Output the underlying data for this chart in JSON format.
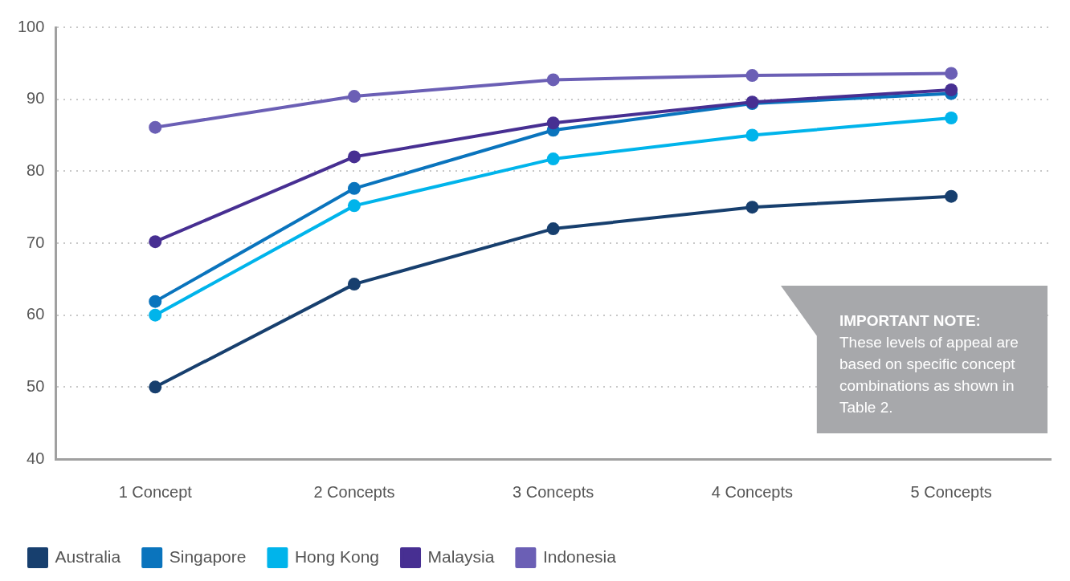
{
  "chart_data": {
    "type": "line",
    "categories": [
      "1 Concept",
      "2 Concepts",
      "3 Concepts",
      "4 Concepts",
      "5 Concepts"
    ],
    "series": [
      {
        "name": "Australia",
        "color": "#173f6e",
        "values": [
          50,
          64.3,
          72,
          75,
          76.5
        ]
      },
      {
        "name": "Singapore",
        "color": "#0a74bd",
        "values": [
          61.9,
          77.6,
          85.7,
          89.4,
          90.8
        ]
      },
      {
        "name": "Hong Kong",
        "color": "#00b4eb",
        "values": [
          60,
          75.2,
          81.7,
          85,
          87.4
        ]
      },
      {
        "name": "Malaysia",
        "color": "#472f92",
        "values": [
          70.2,
          82,
          86.7,
          89.6,
          91.3
        ]
      },
      {
        "name": "Indonesia",
        "color": "#6b5fb5",
        "values": [
          86.1,
          90.4,
          92.7,
          93.3,
          93.6
        ]
      }
    ],
    "ylim": [
      40,
      100
    ],
    "yticks": [
      40,
      50,
      60,
      70,
      80,
      90,
      100
    ],
    "grid": "y",
    "legend": "bottom left",
    "marker": "circle",
    "line_style": "solid",
    "annotations": [
      "IMPORTANT NOTE:",
      "These levels of appeal are based on specific concept combinations as shown in Table 2."
    ]
  }
}
